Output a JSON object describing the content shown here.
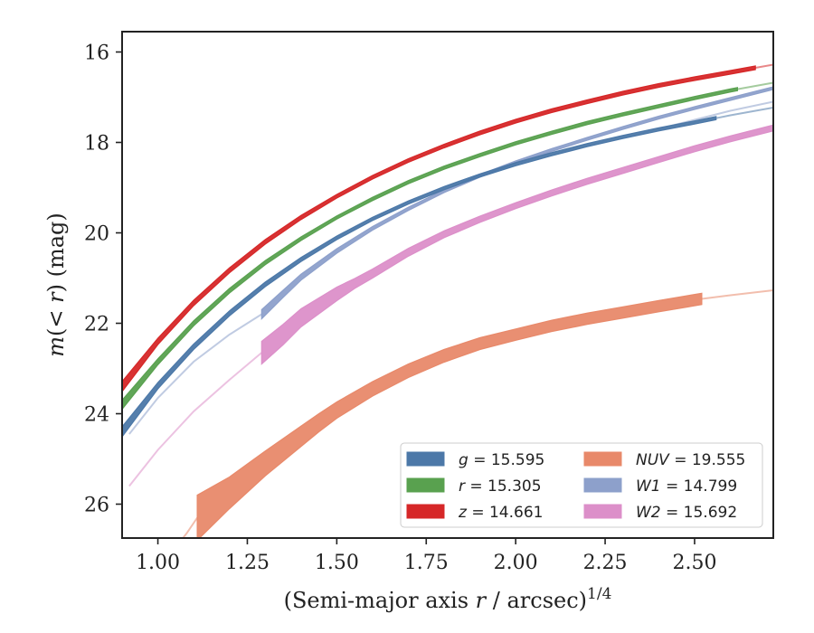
{
  "chart_data": {
    "type": "line",
    "xlabel_main": "(Semi-major axis ",
    "xlabel_var": "r",
    "xlabel_rest": " / arcsec)",
    "xlabel_exp": "1/4",
    "ylabel_m": "m",
    "ylabel_mid": "(< ",
    "ylabel_r": "r",
    "ylabel_end": ") (mag)",
    "xlim": [
      0.9,
      2.72
    ],
    "ylim": [
      26.75,
      15.55
    ],
    "y_inverted": true,
    "xticks": [
      "1.00",
      "1.25",
      "1.50",
      "1.75",
      "2.00",
      "2.25",
      "2.50"
    ],
    "xtick_values": [
      1.0,
      1.25,
      1.5,
      1.75,
      2.0,
      2.25,
      2.5
    ],
    "yticks": [
      "16",
      "18",
      "20",
      "22",
      "24",
      "26"
    ],
    "ytick_values": [
      16,
      18,
      20,
      22,
      24,
      26
    ],
    "grid": false,
    "legend_position": "lower-right",
    "series": [
      {
        "key": "g",
        "name_var": "g",
        "name_rest": " = 15.595",
        "color": "#4c78a8",
        "x": [
          0.9,
          1.0,
          1.1,
          1.2,
          1.3,
          1.4,
          1.5,
          1.6,
          1.7,
          1.8,
          1.9,
          2.0,
          2.1,
          2.2,
          2.3,
          2.4,
          2.5,
          2.6,
          2.72
        ],
        "y": [
          24.4,
          23.38,
          22.52,
          21.78,
          21.14,
          20.59,
          20.11,
          19.69,
          19.33,
          19.01,
          18.73,
          18.48,
          18.26,
          18.06,
          17.88,
          17.71,
          17.56,
          17.4,
          17.23
        ],
        "band_width": [
          0.22,
          0.14,
          0.12,
          0.11,
          0.1,
          0.09,
          0.08,
          0.07,
          0.07,
          0.07,
          0.07,
          0.07,
          0.07,
          0.07,
          0.07,
          0.07,
          0.07,
          0.07,
          0.07
        ],
        "solid_until": 2.56
      },
      {
        "key": "r",
        "name_var": "r",
        "name_rest": " = 15.305",
        "color": "#59a14f",
        "x": [
          0.9,
          1.0,
          1.1,
          1.2,
          1.3,
          1.4,
          1.5,
          1.6,
          1.7,
          1.8,
          1.9,
          2.0,
          2.1,
          2.2,
          2.3,
          2.4,
          2.5,
          2.6,
          2.72
        ],
        "y": [
          23.8,
          22.85,
          22.0,
          21.28,
          20.66,
          20.13,
          19.66,
          19.25,
          18.88,
          18.56,
          18.28,
          18.02,
          17.79,
          17.57,
          17.38,
          17.2,
          17.02,
          16.85,
          16.68
        ],
        "band_width": [
          0.2,
          0.13,
          0.11,
          0.1,
          0.09,
          0.08,
          0.07,
          0.07,
          0.07,
          0.07,
          0.07,
          0.07,
          0.07,
          0.07,
          0.07,
          0.07,
          0.07,
          0.07,
          0.07
        ],
        "solid_until": 2.62
      },
      {
        "key": "z",
        "name_var": "z",
        "name_rest": " = 14.661",
        "color": "#d62728",
        "x": [
          0.9,
          1.0,
          1.1,
          1.2,
          1.3,
          1.4,
          1.5,
          1.6,
          1.7,
          1.8,
          1.9,
          2.0,
          2.1,
          2.2,
          2.3,
          2.4,
          2.5,
          2.6,
          2.72
        ],
        "y": [
          23.4,
          22.4,
          21.55,
          20.83,
          20.2,
          19.66,
          19.19,
          18.77,
          18.4,
          18.08,
          17.79,
          17.53,
          17.3,
          17.1,
          16.91,
          16.74,
          16.59,
          16.45,
          16.28
        ],
        "band_width": [
          0.22,
          0.14,
          0.12,
          0.11,
          0.1,
          0.09,
          0.08,
          0.08,
          0.08,
          0.08,
          0.08,
          0.08,
          0.08,
          0.08,
          0.08,
          0.08,
          0.08,
          0.08,
          0.08
        ],
        "solid_until": 2.67
      },
      {
        "key": "NUV",
        "name_var": "NUV",
        "name_rest": " = 19.555",
        "color": "#e8896a",
        "x": [
          1.11,
          1.2,
          1.3,
          1.4,
          1.45,
          1.5,
          1.6,
          1.7,
          1.8,
          1.9,
          2.0,
          2.1,
          2.2,
          2.3,
          2.4,
          2.52
        ],
        "y": [
          26.3,
          25.75,
          25.1,
          24.5,
          24.2,
          23.92,
          23.45,
          23.05,
          22.72,
          22.45,
          22.25,
          22.06,
          21.9,
          21.76,
          21.62,
          21.46
        ],
        "band_width": [
          1.0,
          0.7,
          0.55,
          0.45,
          0.4,
          0.36,
          0.32,
          0.3,
          0.28,
          0.26,
          0.25,
          0.25,
          0.25,
          0.25,
          0.25,
          0.25
        ],
        "ext_before_x": [
          1.05,
          1.08,
          1.11
        ],
        "ext_before_y": [
          26.95,
          26.65,
          26.3
        ],
        "ext_after_x": [
          2.52,
          2.6,
          2.72
        ],
        "ext_after_y": [
          21.46,
          21.38,
          21.27
        ]
      },
      {
        "key": "W1",
        "name_var": "W1",
        "name_rest": " = 14.799",
        "color": "#8da0cb",
        "x": [
          1.29,
          1.35,
          1.4,
          1.5,
          1.6,
          1.7,
          1.8,
          1.9,
          2.0,
          2.1,
          2.2,
          2.3,
          2.4,
          2.5,
          2.6,
          2.72
        ],
        "y": [
          21.8,
          21.35,
          20.98,
          20.4,
          19.9,
          19.47,
          19.08,
          18.74,
          18.44,
          18.17,
          17.92,
          17.68,
          17.45,
          17.24,
          17.04,
          16.8
        ],
        "band_width": [
          0.2,
          0.16,
          0.13,
          0.1,
          0.08,
          0.07,
          0.06,
          0.06,
          0.06,
          0.06,
          0.06,
          0.06,
          0.06,
          0.06,
          0.06,
          0.06
        ],
        "ext_before_x": [
          0.92,
          1.0,
          1.1,
          1.2,
          1.29
        ],
        "ext_before_y": [
          24.45,
          23.65,
          22.85,
          22.25,
          21.8
        ],
        "ext_after_x": [
          2.4,
          2.5,
          2.6,
          2.72
        ],
        "ext_after_y": [
          17.7,
          17.5,
          17.3,
          17.1
        ]
      },
      {
        "key": "W2",
        "name_var": "W2",
        "name_rest": " = 15.692",
        "color": "#dc8fc9",
        "x": [
          1.29,
          1.35,
          1.4,
          1.5,
          1.55,
          1.6,
          1.7,
          1.8,
          1.9,
          2.0,
          2.1,
          2.2,
          2.3,
          2.4,
          2.5,
          2.6,
          2.72
        ],
        "y": [
          22.65,
          22.25,
          21.88,
          21.35,
          21.12,
          20.9,
          20.43,
          20.03,
          19.7,
          19.4,
          19.12,
          18.86,
          18.62,
          18.38,
          18.14,
          17.92,
          17.68
        ],
        "band_width": [
          0.5,
          0.45,
          0.4,
          0.3,
          0.22,
          0.2,
          0.17,
          0.15,
          0.14,
          0.13,
          0.13,
          0.13,
          0.13,
          0.13,
          0.13,
          0.13,
          0.13
        ],
        "ext_before_x": [
          0.92,
          1.0,
          1.1,
          1.2,
          1.29
        ],
        "ext_before_y": [
          25.6,
          24.8,
          23.95,
          23.25,
          22.65
        ]
      }
    ]
  }
}
